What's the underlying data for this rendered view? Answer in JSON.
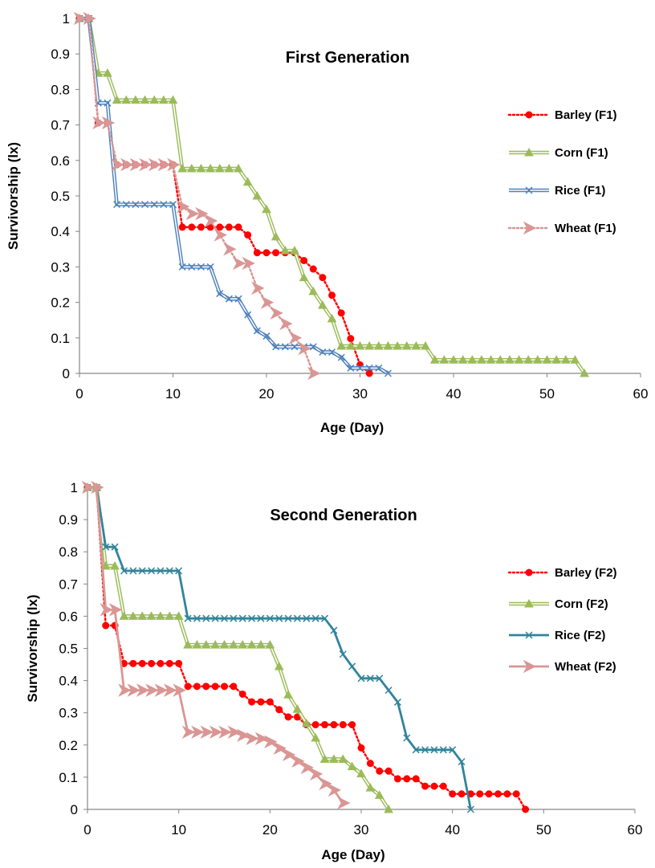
{
  "chart_data": [
    {
      "type": "line",
      "title": "First Generation",
      "xlabel": "Age (Day)",
      "ylabel": "Survivorship (lx)",
      "xlim": [
        0,
        60
      ],
      "ylim": [
        0,
        1
      ],
      "x_ticks": [
        "0",
        "10",
        "20",
        "30",
        "40",
        "50",
        "60"
      ],
      "y_ticks": [
        "0",
        "0.1",
        "0.2",
        "0.3",
        "0.4",
        "0.5",
        "0.6",
        "0.7",
        "0.8",
        "0.9",
        "1"
      ],
      "grid": false,
      "legend_position": "right",
      "series": [
        {
          "name": "Barley (F1)",
          "color": "#ff0000",
          "marker": "circle",
          "line": "dotted",
          "x": [
            0,
            1,
            2,
            3,
            4,
            5,
            6,
            7,
            8,
            9,
            10,
            11,
            12,
            13,
            14,
            15,
            16,
            17,
            18,
            19,
            20,
            21,
            22,
            23,
            24,
            25,
            26,
            27,
            28,
            29,
            30,
            31
          ],
          "y": [
            1,
            1,
            0.706,
            0.706,
            0.588,
            0.588,
            0.588,
            0.588,
            0.588,
            0.588,
            0.588,
            0.412,
            0.412,
            0.412,
            0.412,
            0.412,
            0.412,
            0.412,
            0.39,
            0.34,
            0.34,
            0.34,
            0.34,
            0.34,
            0.318,
            0.294,
            0.27,
            0.22,
            0.17,
            0.098,
            0.024,
            0
          ]
        },
        {
          "name": "Corn (F1)",
          "color": "#9bbb59",
          "marker": "triangle",
          "line": "double",
          "x": [
            0,
            1,
            2,
            3,
            4,
            5,
            6,
            7,
            8,
            9,
            10,
            11,
            12,
            13,
            14,
            15,
            16,
            17,
            18,
            19,
            20,
            21,
            22,
            23,
            24,
            25,
            26,
            27,
            28,
            29,
            30,
            31,
            32,
            33,
            34,
            35,
            36,
            37,
            38,
            39,
            40,
            41,
            42,
            43,
            44,
            45,
            46,
            47,
            48,
            49,
            50,
            51,
            52,
            53,
            54
          ],
          "y": [
            1,
            1,
            0.846,
            0.846,
            0.77,
            0.77,
            0.77,
            0.77,
            0.77,
            0.77,
            0.77,
            0.577,
            0.577,
            0.577,
            0.577,
            0.577,
            0.577,
            0.577,
            0.539,
            0.5,
            0.462,
            0.385,
            0.346,
            0.346,
            0.27,
            0.231,
            0.192,
            0.154,
            0.077,
            0.077,
            0.077,
            0.077,
            0.077,
            0.077,
            0.077,
            0.077,
            0.077,
            0.077,
            0.038,
            0.038,
            0.038,
            0.038,
            0.038,
            0.038,
            0.038,
            0.038,
            0.038,
            0.038,
            0.038,
            0.038,
            0.038,
            0.038,
            0.038,
            0.038,
            0
          ]
        },
        {
          "name": "Rice (F1)",
          "color": "#4f81bd",
          "marker": "x",
          "line": "double",
          "x": [
            0,
            1,
            2,
            3,
            4,
            5,
            6,
            7,
            8,
            9,
            10,
            11,
            12,
            13,
            14,
            15,
            16,
            17,
            18,
            19,
            20,
            21,
            22,
            23,
            24,
            25,
            26,
            27,
            28,
            29,
            30,
            31,
            32,
            33
          ],
          "y": [
            1,
            1,
            0.762,
            0.762,
            0.476,
            0.476,
            0.476,
            0.476,
            0.476,
            0.476,
            0.476,
            0.3,
            0.3,
            0.3,
            0.3,
            0.225,
            0.21,
            0.21,
            0.165,
            0.12,
            0.105,
            0.075,
            0.075,
            0.075,
            0.075,
            0.075,
            0.06,
            0.06,
            0.045,
            0.015,
            0.015,
            0.015,
            0.015,
            0
          ]
        },
        {
          "name": "Wheat (F1)",
          "color": "#d99694",
          "marker": "arrow",
          "line": "dotted",
          "x": [
            0,
            1,
            2,
            3,
            4,
            5,
            6,
            7,
            8,
            9,
            10,
            11,
            12,
            13,
            14,
            15,
            16,
            17,
            18,
            19,
            20,
            21,
            22,
            23,
            24,
            25
          ],
          "y": [
            1,
            1,
            0.706,
            0.706,
            0.588,
            0.588,
            0.588,
            0.588,
            0.588,
            0.588,
            0.588,
            0.47,
            0.45,
            0.45,
            0.43,
            0.39,
            0.35,
            0.31,
            0.31,
            0.24,
            0.2,
            0.17,
            0.14,
            0.1,
            0.07,
            0
          ]
        }
      ]
    },
    {
      "type": "line",
      "title": "Second Generation",
      "xlabel": "Age (Day)",
      "ylabel": "Survivorship (lx)",
      "xlim": [
        0,
        60
      ],
      "ylim": [
        0,
        1
      ],
      "x_ticks": [
        "0",
        "10",
        "20",
        "30",
        "40",
        "50",
        "60"
      ],
      "y_ticks": [
        "0",
        "0.1",
        "0.2",
        "0.3",
        "0.4",
        "0.5",
        "0.6",
        "0.7",
        "0.8",
        "0.9",
        "1"
      ],
      "grid": false,
      "legend_position": "right",
      "series": [
        {
          "name": "Barley (F2)",
          "color": "#ff0000",
          "marker": "circle",
          "line": "dotted",
          "x": [
            0,
            1,
            2,
            3,
            4,
            5,
            6,
            7,
            8,
            9,
            10,
            11,
            12,
            13,
            14,
            15,
            16,
            17,
            18,
            19,
            20,
            21,
            22,
            23,
            24,
            25,
            26,
            27,
            28,
            29,
            30,
            31,
            32,
            33,
            34,
            35,
            36,
            37,
            38,
            39,
            40,
            41,
            42,
            43,
            44,
            45,
            46,
            47,
            48
          ],
          "y": [
            1,
            1,
            0.571,
            0.571,
            0.453,
            0.453,
            0.453,
            0.453,
            0.453,
            0.453,
            0.453,
            0.382,
            0.382,
            0.382,
            0.382,
            0.382,
            0.382,
            0.358,
            0.334,
            0.334,
            0.334,
            0.31,
            0.287,
            0.287,
            0.263,
            0.263,
            0.263,
            0.263,
            0.263,
            0.263,
            0.191,
            0.143,
            0.119,
            0.119,
            0.095,
            0.095,
            0.095,
            0.072,
            0.072,
            0.072,
            0.048,
            0.048,
            0.048,
            0.048,
            0.048,
            0.048,
            0.048,
            0.048,
            0
          ]
        },
        {
          "name": "Corn (F2)",
          "color": "#9bbb59",
          "marker": "triangle",
          "line": "double",
          "x": [
            0,
            1,
            2,
            3,
            4,
            5,
            6,
            7,
            8,
            9,
            10,
            11,
            12,
            13,
            14,
            15,
            16,
            17,
            18,
            19,
            20,
            21,
            22,
            23,
            24,
            25,
            26,
            27,
            28,
            29,
            30,
            31,
            32,
            33
          ],
          "y": [
            1,
            1,
            0.756,
            0.756,
            0.6,
            0.6,
            0.6,
            0.6,
            0.6,
            0.6,
            0.6,
            0.511,
            0.511,
            0.511,
            0.511,
            0.511,
            0.511,
            0.511,
            0.511,
            0.511,
            0.511,
            0.444,
            0.356,
            0.311,
            0.267,
            0.222,
            0.156,
            0.156,
            0.156,
            0.133,
            0.111,
            0.067,
            0.044,
            0
          ]
        },
        {
          "name": "Rice (F2)",
          "color": "#31849b",
          "marker": "x",
          "line": "solid",
          "x": [
            0,
            1,
            2,
            3,
            4,
            5,
            6,
            7,
            8,
            9,
            10,
            11,
            12,
            13,
            14,
            15,
            16,
            17,
            18,
            19,
            20,
            21,
            22,
            23,
            24,
            25,
            26,
            27,
            28,
            29,
            30,
            31,
            32,
            33,
            34,
            35,
            36,
            37,
            38,
            39,
            40,
            41,
            42
          ],
          "y": [
            1,
            1,
            0.815,
            0.815,
            0.741,
            0.741,
            0.741,
            0.741,
            0.741,
            0.741,
            0.741,
            0.593,
            0.593,
            0.593,
            0.593,
            0.593,
            0.593,
            0.593,
            0.593,
            0.593,
            0.593,
            0.593,
            0.593,
            0.593,
            0.593,
            0.593,
            0.593,
            0.556,
            0.482,
            0.444,
            0.407,
            0.407,
            0.407,
            0.37,
            0.333,
            0.222,
            0.185,
            0.185,
            0.185,
            0.185,
            0.185,
            0.148,
            0
          ]
        },
        {
          "name": "Wheat (F2)",
          "color": "#d99694",
          "marker": "arrow",
          "line": "solid",
          "x": [
            0,
            1,
            2,
            3,
            4,
            5,
            6,
            7,
            8,
            9,
            10,
            11,
            12,
            13,
            14,
            15,
            16,
            17,
            18,
            19,
            20,
            21,
            22,
            23,
            24,
            25,
            26,
            27,
            28
          ],
          "y": [
            1,
            1,
            0.62,
            0.62,
            0.37,
            0.37,
            0.37,
            0.37,
            0.37,
            0.37,
            0.37,
            0.24,
            0.24,
            0.24,
            0.24,
            0.24,
            0.24,
            0.23,
            0.22,
            0.22,
            0.21,
            0.19,
            0.17,
            0.15,
            0.13,
            0.11,
            0.08,
            0.06,
            0.02
          ]
        }
      ]
    }
  ]
}
